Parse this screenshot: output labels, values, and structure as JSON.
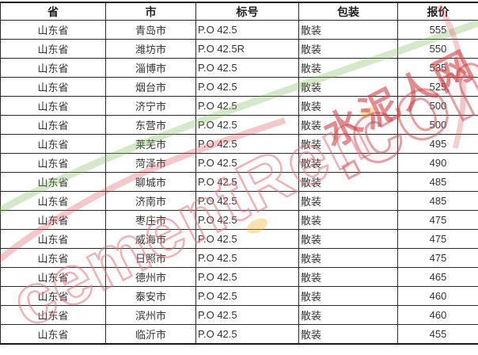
{
  "table": {
    "columns": [
      {
        "key": "province",
        "label": "省"
      },
      {
        "key": "city",
        "label": "市"
      },
      {
        "key": "grade",
        "label": "标号"
      },
      {
        "key": "packaging",
        "label": "包装"
      },
      {
        "key": "price",
        "label": "报价"
      }
    ],
    "rows": [
      [
        "山东省",
        "青岛市",
        "P.O 42.5",
        "散装",
        "555"
      ],
      [
        "山东省",
        "潍坊市",
        "P.O 42.5R",
        "散装",
        "550"
      ],
      [
        "山东省",
        "淄博市",
        "P.O 42.5",
        "散装",
        "535"
      ],
      [
        "山东省",
        "烟台市",
        "P.O 42.5",
        "散装",
        "525"
      ],
      [
        "山东省",
        "济宁市",
        "P.O 42.5",
        "散装",
        "500"
      ],
      [
        "山东省",
        "东营市",
        "P.O 42.5",
        "散装",
        "500"
      ],
      [
        "山东省",
        "莱芜市",
        "P.O 42.5",
        "散装",
        "495"
      ],
      [
        "山东省",
        "菏泽市",
        "P.O 42.5",
        "散装",
        "490"
      ],
      [
        "山东省",
        "聊城市",
        "P.O 42.5",
        "散装",
        "485"
      ],
      [
        "山东省",
        "济南市",
        "P.O 42.5",
        "散装",
        "485"
      ],
      [
        "山东省",
        "枣庄市",
        "P.O 42.5",
        "散装",
        "475"
      ],
      [
        "山东省",
        "威海市",
        "P.O 42.5",
        "散装",
        "475"
      ],
      [
        "山东省",
        "日照市",
        "P.O 42.5",
        "散装",
        "475"
      ],
      [
        "山东省",
        "德州市",
        "P.O 42.5",
        "散装",
        "465"
      ],
      [
        "山东省",
        "泰安市",
        "P.O 42.5",
        "散装",
        "460"
      ],
      [
        "山东省",
        "滨州市",
        "P.O 42.5",
        "散装",
        "460"
      ],
      [
        "山东省",
        "临沂市",
        "P.O 42.5",
        "散装",
        "455"
      ]
    ]
  },
  "watermark": {
    "site_text": "cementRen",
    "domain_text": ".com",
    "cn_text": "水泥人网",
    "colors": {
      "red": "#cf4146",
      "pink_outline": "#e2737b",
      "green": "#7cb857",
      "yellow": "#f0b429"
    }
  }
}
